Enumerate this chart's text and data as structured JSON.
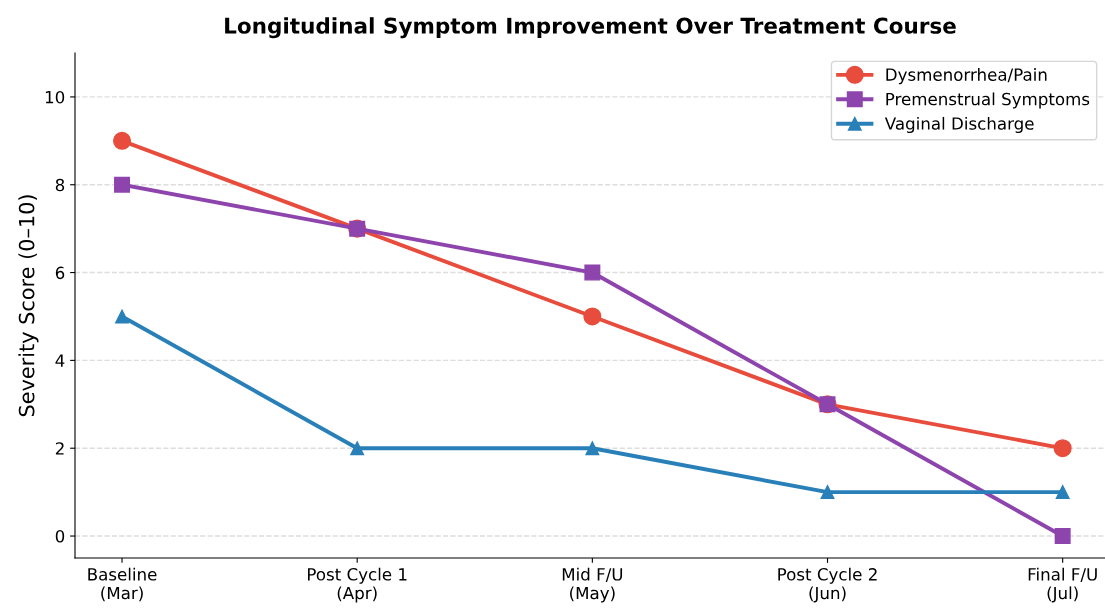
{
  "chart_data": {
    "type": "line",
    "title": "Longitudinal Symptom Improvement Over Treatment Course",
    "ylabel": "Severity Score (0–10)",
    "categories": [
      "Baseline\n(Mar)",
      "Post Cycle 1\n(Apr)",
      "Mid F/U\n(May)",
      "Post Cycle 2\n(Jun)",
      "Final F/U\n(Jul)"
    ],
    "series": [
      {
        "name": "Dysmenorrhea/Pain",
        "color": "#e74c3c",
        "marker": "circle",
        "values": [
          9,
          7,
          5,
          3,
          2
        ]
      },
      {
        "name": "Premenstrual Symptoms",
        "color": "#8e44ad",
        "marker": "square",
        "values": [
          8,
          7,
          6,
          3,
          0
        ]
      },
      {
        "name": "Vaginal Discharge",
        "color": "#2980b9",
        "marker": "triangle",
        "values": [
          5,
          2,
          2,
          1,
          1
        ]
      }
    ],
    "ylim": [
      -0.5,
      11
    ],
    "yticks": [
      0,
      2,
      4,
      6,
      8,
      10
    ],
    "grid": "y",
    "legend": "top right",
    "line_style": "solid"
  }
}
